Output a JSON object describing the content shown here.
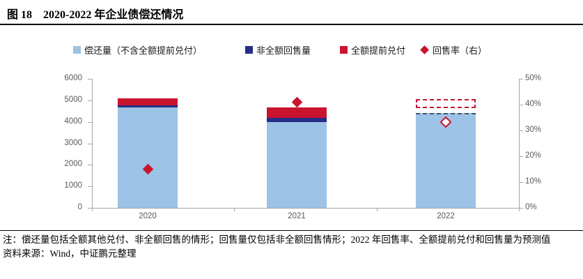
{
  "figure": {
    "label": "图 18",
    "title": "2020-2022 年企业债偿还情况"
  },
  "chart_data": {
    "type": "bar",
    "stacked": true,
    "legend_position": "top",
    "categories": [
      "2020",
      "2021",
      "2022"
    ],
    "series": [
      {
        "name": "偿还量（不含全额提前兑付）",
        "type": "bar",
        "color": "#9DC3E6",
        "values": [
          4670,
          3990,
          4410
        ]
      },
      {
        "name": "非全额回售量",
        "type": "bar",
        "color": "#252E87",
        "values": [
          100,
          195,
          0
        ]
      },
      {
        "name": "全额提前兑付",
        "type": "bar",
        "color": "#C9142E",
        "values": [
          330,
          490,
          null
        ],
        "forecast": {
          "category": "2022",
          "range": [
            4640,
            5060
          ],
          "style": "dashed-outline"
        }
      },
      {
        "name": "回售率（右）",
        "type": "scatter",
        "marker": "diamond",
        "axis": "right",
        "color": "#C9142E",
        "values": [
          15,
          41,
          33
        ],
        "unit": "%",
        "hollow": [
          false,
          false,
          true
        ]
      }
    ],
    "left_axis": {
      "range": [
        0,
        6000
      ],
      "ticks": [
        "0",
        "1000",
        "2000",
        "3000",
        "4000",
        "5000",
        "6000"
      ]
    },
    "right_axis": {
      "range": [
        0,
        50
      ],
      "ticks": [
        "0%",
        "10%",
        "20%",
        "30%",
        "40%",
        "50%"
      ]
    },
    "forecast_category": "2022",
    "colors": {
      "forecast_edge": "#44546A",
      "axis_line": "#A6A6A6",
      "axis_text": "#595959"
    }
  },
  "notes": {
    "note": "注：偿还量包括全额其他兑付、非全额回售的情形；回售量仅包括非全额回售情形；2022 年回售率、全额提前兑付和回售量为预测值",
    "source": "资料来源：Wind，中证鹏元整理"
  }
}
